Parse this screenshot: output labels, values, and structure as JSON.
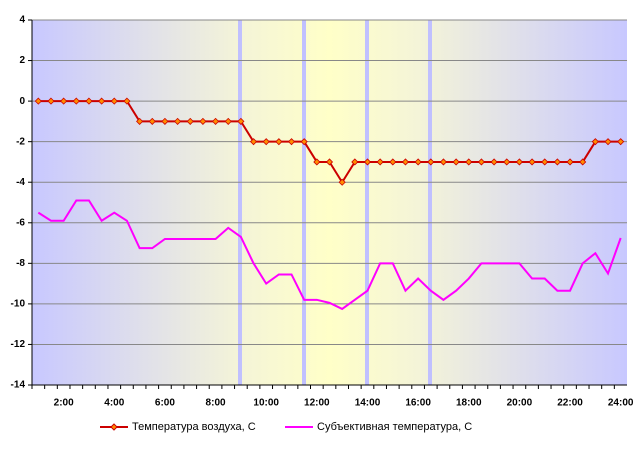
{
  "chart_data": {
    "type": "line",
    "categories": [
      null,
      null,
      "2:00",
      null,
      null,
      null,
      "4:00",
      null,
      null,
      null,
      "6:00",
      null,
      null,
      null,
      "8:00",
      null,
      null,
      null,
      "10:00",
      null,
      null,
      null,
      "12:00",
      null,
      null,
      null,
      "14:00",
      null,
      null,
      null,
      "16:00",
      null,
      null,
      null,
      "18:00",
      null,
      null,
      null,
      "20:00",
      null,
      null,
      null,
      "22:00",
      null,
      null,
      null,
      "24:00"
    ],
    "series": [
      {
        "name": "Температура воздуха, С",
        "color": "#cc0000",
        "values": [
          0,
          0,
          0,
          0,
          0,
          0,
          0,
          0,
          -1,
          -1,
          -1,
          -1,
          -1,
          -1,
          -1,
          -1,
          -1,
          -2,
          -2,
          -2,
          -2,
          -2,
          -3,
          -3,
          -4,
          -3,
          -3,
          -3,
          -3,
          -3,
          -3,
          -3,
          -3,
          -3,
          -3,
          -3,
          -3,
          -3,
          -3,
          -3,
          -3,
          -3,
          -3,
          -3,
          -2,
          -2,
          -2
        ]
      },
      {
        "name": "Субъективная температура, С",
        "color": "#ff00ff",
        "values": [
          -5.5,
          -5.9,
          -5.9,
          -4.9,
          -4.9,
          -5.9,
          -5.5,
          -5.9,
          -7.25,
          -7.25,
          -6.8,
          -6.8,
          -6.8,
          -6.8,
          -6.8,
          -6.25,
          -6.7,
          -8,
          -9,
          -8.55,
          -8.55,
          -9.8,
          -9.8,
          -9.95,
          -10.25,
          -9.8,
          -9.35,
          -8,
          -8,
          -9.35,
          -8.75,
          -9.35,
          -9.8,
          -9.35,
          -8.75,
          -8,
          -8,
          -8,
          -8,
          -8.75,
          -8.75,
          -9.35,
          -9.35,
          -8,
          -7.5,
          -8.5,
          -6.75
        ]
      }
    ],
    "ylim": [
      -14,
      4
    ],
    "yticks": [
      -14,
      -12,
      -10,
      -8,
      -6,
      -4,
      -2,
      0,
      2,
      4
    ],
    "grid": true
  }
}
